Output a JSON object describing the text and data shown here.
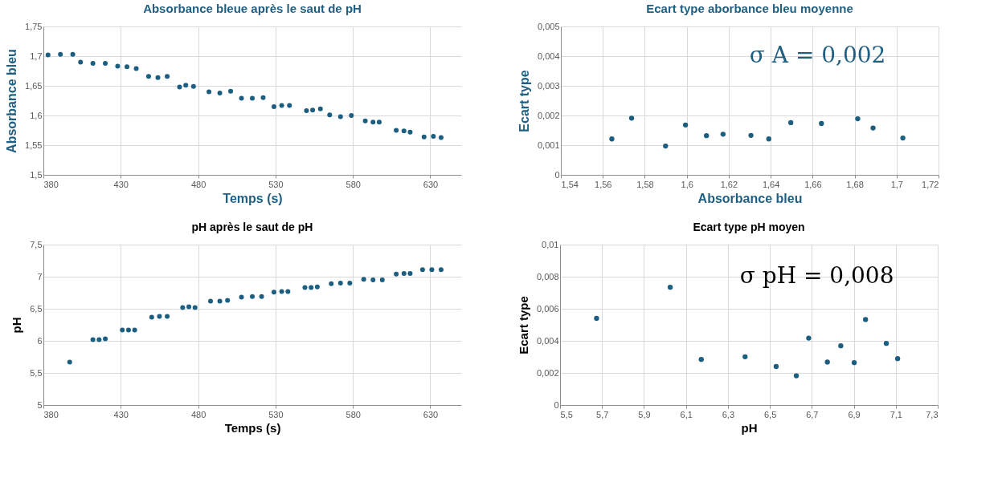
{
  "chart_data": [
    {
      "type": "scatter",
      "title": "Absorbance bleue après le saut de pH",
      "xlabel": "Temps (s)",
      "ylabel": "Absorbance bleu",
      "marker": "circle",
      "grid": true,
      "xlim": [
        380,
        650
      ],
      "xticks": [
        380,
        430,
        480,
        530,
        580,
        630
      ],
      "ylim": [
        1.5,
        1.75
      ],
      "yticks": [
        {
          "value": 1.5,
          "label": "1,5"
        },
        {
          "value": 1.55,
          "label": "1,55"
        },
        {
          "value": 1.6,
          "label": "1,6"
        },
        {
          "value": 1.65,
          "label": "1,65"
        },
        {
          "value": 1.7,
          "label": "1,7"
        },
        {
          "value": 1.75,
          "label": "1,75"
        }
      ],
      "series": [
        {
          "color": "#1b5e80",
          "x": [
            383,
            391,
            399,
            404,
            412,
            420,
            428,
            434,
            440,
            448,
            454,
            460,
            468,
            472,
            477,
            487,
            494,
            501,
            508,
            515,
            522,
            529,
            534,
            539,
            550,
            554,
            559,
            565,
            572,
            579,
            588,
            593,
            597,
            608,
            613,
            617,
            626,
            632,
            637
          ],
          "values": [
            1.702,
            1.703,
            1.703,
            1.69,
            1.688,
            1.688,
            1.683,
            1.682,
            1.679,
            1.666,
            1.664,
            1.666,
            1.648,
            1.651,
            1.649,
            1.64,
            1.638,
            1.641,
            1.629,
            1.629,
            1.63,
            1.615,
            1.617,
            1.617,
            1.608,
            1.609,
            1.611,
            1.601,
            1.598,
            1.6,
            1.591,
            1.589,
            1.589,
            1.575,
            1.574,
            1.572,
            1.564,
            1.565,
            1.563
          ]
        }
      ]
    },
    {
      "type": "scatter",
      "title": "Ecart type aborbance bleu moyenne",
      "xlabel": "Absorbance bleu",
      "ylabel": "Ecart type",
      "marker": "circle",
      "grid": true,
      "annotations": [
        "σ A = 0,002"
      ],
      "xlim": [
        1.54,
        1.72
      ],
      "xticks": [
        {
          "value": 1.54,
          "label": "1,54"
        },
        {
          "value": 1.56,
          "label": "1,56"
        },
        {
          "value": 1.58,
          "label": "1,58"
        },
        {
          "value": 1.6,
          "label": "1,6"
        },
        {
          "value": 1.62,
          "label": "1,62"
        },
        {
          "value": 1.64,
          "label": "1,64"
        },
        {
          "value": 1.66,
          "label": "1,66"
        },
        {
          "value": 1.68,
          "label": "1,68"
        },
        {
          "value": 1.7,
          "label": "1,7"
        },
        {
          "value": 1.72,
          "label": "1,72"
        }
      ],
      "ylim": [
        0,
        0.005
      ],
      "yticks": [
        0,
        {
          "value": 0.001,
          "label": "0,001"
        },
        {
          "value": 0.002,
          "label": "0,002"
        },
        {
          "value": 0.003,
          "label": "0,003"
        },
        {
          "value": 0.004,
          "label": "0,004"
        },
        {
          "value": 0.005,
          "label": "0,005"
        }
      ],
      "series": [
        {
          "color": "#1b5e80",
          "x": [
            1.5643,
            1.5737,
            1.5899,
            1.5994,
            1.6094,
            1.6173,
            1.6306,
            1.6391,
            1.6496,
            1.6642,
            1.6815,
            1.6888,
            1.703
          ],
          "values": [
            0.00121,
            0.00191,
            0.00097,
            0.00168,
            0.00132,
            0.00137,
            0.00133,
            0.00121,
            0.00176,
            0.00173,
            0.00189,
            0.00158,
            0.00124
          ]
        }
      ]
    },
    {
      "type": "scatter",
      "title": "pH après le saut de pH",
      "xlabel": "Temps (s)",
      "ylabel": "pH",
      "marker": "circle",
      "grid": true,
      "xlim": [
        380,
        650
      ],
      "xticks": [
        380,
        430,
        480,
        530,
        580,
        630
      ],
      "ylim": [
        5,
        7.5
      ],
      "yticks": [
        5,
        {
          "value": 5.5,
          "label": "5,5"
        },
        6,
        {
          "value": 6.5,
          "label": "6,5"
        },
        7,
        {
          "value": 7.5,
          "label": "7,5"
        }
      ],
      "series": [
        {
          "color": "#1b5e80",
          "x": [
            397,
            412,
            416,
            420,
            431,
            435,
            439,
            450,
            455,
            460,
            470,
            474,
            478,
            488,
            494,
            499,
            508,
            515,
            521,
            529,
            534,
            538,
            549,
            553,
            557,
            566,
            572,
            578,
            587,
            593,
            599,
            608,
            613,
            617,
            625,
            631,
            637
          ],
          "values": [
            5.67,
            6.02,
            6.02,
            6.03,
            6.17,
            6.17,
            6.17,
            6.37,
            6.38,
            6.38,
            6.52,
            6.53,
            6.52,
            6.62,
            6.62,
            6.63,
            6.68,
            6.69,
            6.69,
            6.76,
            6.77,
            6.77,
            6.83,
            6.83,
            6.84,
            6.89,
            6.9,
            6.9,
            6.96,
            6.95,
            6.95,
            7.04,
            7.05,
            7.05,
            7.11,
            7.11,
            7.11
          ]
        }
      ]
    },
    {
      "type": "scatter",
      "title": "Ecart type pH moyen",
      "xlabel": "pH",
      "ylabel": "Ecart type",
      "marker": "circle",
      "grid": true,
      "annotations": [
        "σ pH = 0,008"
      ],
      "xlim": [
        5.5,
        7.3
      ],
      "xticks": [
        {
          "value": 5.5,
          "label": "5,5"
        },
        {
          "value": 5.7,
          "label": "5,7"
        },
        {
          "value": 5.9,
          "label": "5,9"
        },
        {
          "value": 6.1,
          "label": "6,1"
        },
        {
          "value": 6.3,
          "label": "6,3"
        },
        {
          "value": 6.5,
          "label": "6,5"
        },
        {
          "value": 6.7,
          "label": "6,7"
        },
        {
          "value": 6.9,
          "label": "6,9"
        },
        {
          "value": 7.1,
          "label": "7,1"
        },
        {
          "value": 7.3,
          "label": "7,3"
        }
      ],
      "ylim": [
        0,
        0.01
      ],
      "yticks": [
        0,
        {
          "value": 0.002,
          "label": "0,002"
        },
        {
          "value": 0.004,
          "label": "0,004"
        },
        {
          "value": 0.006,
          "label": "0,006"
        },
        {
          "value": 0.008,
          "label": "0,008"
        },
        {
          "value": 0.01,
          "label": "0,01"
        }
      ],
      "series": [
        {
          "color": "#1b5e80",
          "x": [
            5.674,
            6.025,
            6.173,
            6.382,
            6.53,
            6.626,
            6.685,
            6.774,
            6.838,
            6.902,
            6.956,
            7.055,
            7.109
          ],
          "values": [
            0.0054,
            0.00734,
            0.00284,
            0.00301,
            0.0024,
            0.00182,
            0.00417,
            0.00268,
            0.00369,
            0.00264,
            0.00533,
            0.00384,
            0.00289
          ]
        }
      ]
    }
  ]
}
